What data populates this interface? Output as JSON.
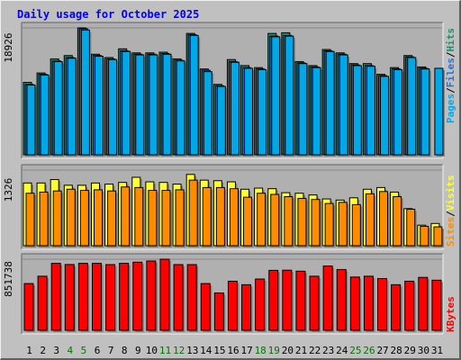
{
  "title": "Daily usage for October 2025",
  "colors": {
    "background": "#c0c0c0",
    "panel": "#b0b0b0",
    "title": "#0000ff",
    "hits": "#1e8f6e",
    "files": "#2a6fd0",
    "pages": "#00a8e8",
    "visits": "#ffff33",
    "sites": "#ff8c00",
    "kbytes": "#ff0000",
    "weekend_label": "#007700",
    "weekday_label": "#000000"
  },
  "axis_labels": {
    "top_max": "18926",
    "mid_max": "1326",
    "bottom_max": "851738"
  },
  "chart_data": [
    {
      "type": "bar",
      "name": "hits-files-pages",
      "title": "Daily usage for October 2025",
      "ylabel": "Pages / Files / Hits",
      "categories": [
        "1",
        "2",
        "3",
        "4",
        "5",
        "6",
        "7",
        "8",
        "9",
        "10",
        "11",
        "12",
        "13",
        "14",
        "15",
        "16",
        "17",
        "18",
        "19",
        "20",
        "21",
        "22",
        "23",
        "24",
        "25",
        "26",
        "27",
        "28",
        "29",
        "30",
        "31"
      ],
      "ylim": [
        0,
        18926
      ],
      "series": [
        {
          "name": "Hits",
          "values": [
            10800,
            12200,
            14300,
            14800,
            18926,
            15000,
            14500,
            15800,
            15200,
            15200,
            15300,
            14300,
            18100,
            12800,
            10500,
            14200,
            13300,
            13000,
            18100,
            18200,
            13900,
            13300,
            15700,
            15200,
            13600,
            13600,
            12000,
            13000,
            14800,
            13100,
            0
          ]
        },
        {
          "name": "Files",
          "values": [
            10500,
            12000,
            14000,
            14500,
            18800,
            14800,
            14300,
            15500,
            15000,
            15000,
            15100,
            14100,
            17900,
            12600,
            10300,
            13900,
            13000,
            12800,
            17700,
            17800,
            13700,
            13100,
            15500,
            15000,
            13400,
            13300,
            11800,
            12800,
            14600,
            12900,
            0
          ]
        },
        {
          "name": "Pages",
          "values": [
            10400,
            11900,
            13900,
            14400,
            18600,
            14700,
            14200,
            15400,
            14900,
            14900,
            15000,
            14000,
            17800,
            12400,
            10200,
            13800,
            12900,
            12700,
            17600,
            17700,
            13600,
            13000,
            15400,
            14900,
            13300,
            13200,
            11700,
            12700,
            14500,
            12800,
            12900
          ]
        }
      ]
    },
    {
      "type": "bar",
      "name": "visits-sites",
      "ylabel": "Sites / Visits",
      "categories": [
        "1",
        "2",
        "3",
        "4",
        "5",
        "6",
        "7",
        "8",
        "9",
        "10",
        "11",
        "12",
        "13",
        "14",
        "15",
        "16",
        "17",
        "18",
        "19",
        "20",
        "21",
        "22",
        "23",
        "24",
        "25",
        "26",
        "27",
        "28",
        "29",
        "30",
        "31"
      ],
      "ylim": [
        0,
        1326
      ],
      "series": [
        {
          "name": "Visits",
          "values": [
            1100,
            1100,
            1160,
            1060,
            1060,
            1100,
            1080,
            1110,
            1200,
            1120,
            1110,
            1080,
            1250,
            1150,
            1140,
            1120,
            990,
            1010,
            1000,
            930,
            920,
            890,
            820,
            800,
            840,
            990,
            1020,
            940,
            650,
            360,
            390
          ]
        },
        {
          "name": "Sites",
          "values": [
            920,
            940,
            960,
            990,
            970,
            980,
            960,
            1030,
            1020,
            970,
            970,
            980,
            1150,
            1020,
            1020,
            1000,
            850,
            920,
            900,
            860,
            830,
            810,
            740,
            760,
            720,
            910,
            950,
            860,
            640,
            340,
            330
          ]
        }
      ]
    },
    {
      "type": "bar",
      "name": "kbytes",
      "ylabel": "KBytes",
      "categories": [
        "1",
        "2",
        "3",
        "4",
        "5",
        "6",
        "7",
        "8",
        "9",
        "10",
        "11",
        "12",
        "13",
        "14",
        "15",
        "16",
        "17",
        "18",
        "19",
        "20",
        "21",
        "22",
        "23",
        "24",
        "25",
        "26",
        "27",
        "28",
        "29",
        "30",
        "31"
      ],
      "ylim": [
        0,
        851738
      ],
      "series": [
        {
          "name": "KBytes",
          "values": [
            560000,
            648000,
            802000,
            788000,
            802000,
            802000,
            787000,
            802000,
            816000,
            830000,
            851738,
            787000,
            787000,
            560000,
            447000,
            588000,
            546000,
            614000,
            718000,
            720000,
            708000,
            648000,
            770000,
            728000,
            638000,
            648000,
            620000,
            546000,
            588000,
            634000,
            600000
          ]
        }
      ]
    }
  ],
  "legend": {
    "top": [
      "Pages",
      "/",
      "Files",
      "/",
      "Hits"
    ],
    "mid": [
      "Sites",
      "/",
      "Visits"
    ],
    "bottom": [
      "KBytes"
    ]
  },
  "weekend_days": [
    4,
    5,
    11,
    12,
    18,
    19,
    25,
    26
  ]
}
